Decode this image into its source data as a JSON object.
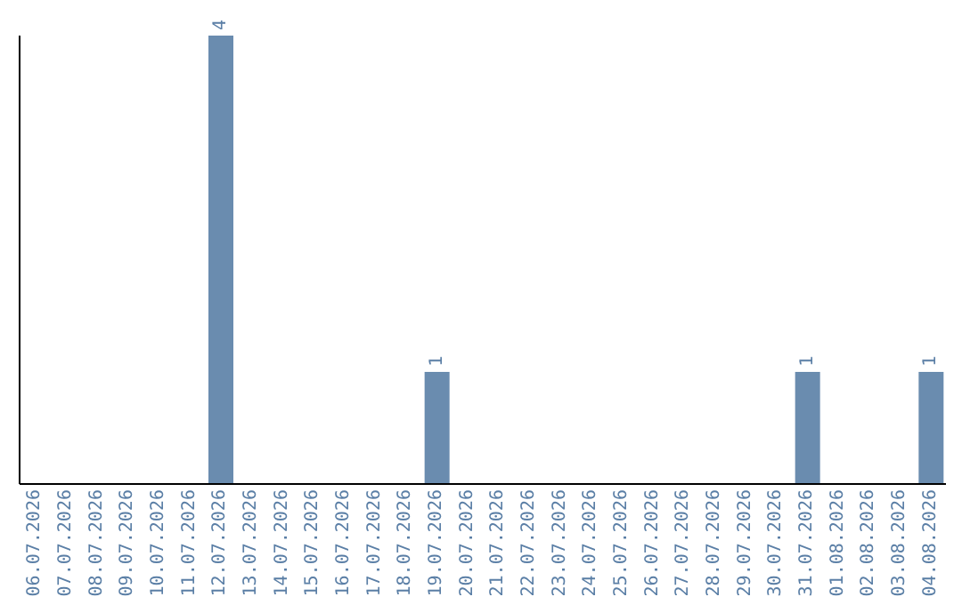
{
  "chart_data": {
    "type": "bar",
    "categories": [
      "06.07.2026",
      "07.07.2026",
      "08.07.2026",
      "09.07.2026",
      "10.07.2026",
      "11.07.2026",
      "12.07.2026",
      "13.07.2026",
      "14.07.2026",
      "15.07.2026",
      "16.07.2026",
      "17.07.2026",
      "18.07.2026",
      "19.07.2026",
      "20.07.2026",
      "21.07.2026",
      "22.07.2026",
      "23.07.2026",
      "24.07.2026",
      "25.07.2026",
      "26.07.2026",
      "27.07.2026",
      "28.07.2026",
      "29.07.2026",
      "30.07.2026",
      "31.07.2026",
      "01.08.2026",
      "02.08.2026",
      "03.08.2026",
      "04.08.2026"
    ],
    "values": [
      0,
      0,
      0,
      0,
      0,
      0,
      4,
      0,
      0,
      0,
      0,
      0,
      0,
      1,
      0,
      0,
      0,
      0,
      0,
      0,
      0,
      0,
      0,
      0,
      0,
      1,
      0,
      0,
      0,
      1
    ],
    "value_labels": [
      null,
      null,
      null,
      null,
      null,
      null,
      "4",
      null,
      null,
      null,
      null,
      null,
      null,
      "1",
      null,
      null,
      null,
      null,
      null,
      null,
      null,
      null,
      null,
      null,
      null,
      "1",
      null,
      null,
      null,
      "1"
    ],
    "color": "#6a8caf",
    "grid": false
  }
}
